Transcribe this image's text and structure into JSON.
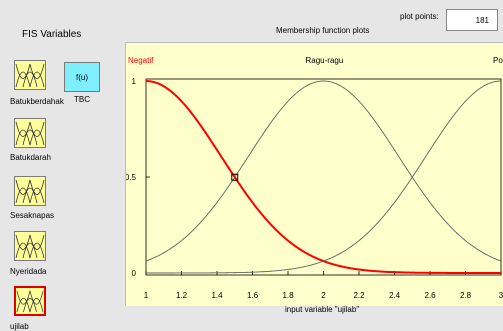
{
  "fis_variables": {
    "title": "FIS Variables",
    "inputs": [
      {
        "label": "Batukberdahak",
        "selected": false
      },
      {
        "label": "Batukdarah",
        "selected": false
      },
      {
        "label": "Sesaknapas",
        "selected": false
      },
      {
        "label": "Nyeridada",
        "selected": false
      },
      {
        "label": "ujilab",
        "selected": true
      }
    ],
    "output": {
      "box_text": "f(u)",
      "label": "TBC"
    }
  },
  "plot": {
    "title": "Membership function plots",
    "plot_points_label": "plot points:",
    "plot_points_value": "181",
    "xlabel": "input variable \"ujilab\"",
    "xlim": [
      1,
      3
    ],
    "ylim": [
      0,
      1
    ],
    "x_ticks": [
      "1",
      "1.2",
      "1.4",
      "1.6",
      "1.8",
      "2",
      "2.2",
      "2.4",
      "2.6",
      "2.8",
      "3"
    ],
    "y_ticks": [
      "0",
      "0.5",
      "1"
    ],
    "membership_functions": [
      {
        "name": "Negatif",
        "type": "gaussmf",
        "center": 1,
        "sigma": 0.424,
        "selected": true,
        "color": "#ff0000"
      },
      {
        "name": "Ragu-ragu",
        "type": "gaussmf",
        "center": 2,
        "sigma": 0.424,
        "selected": false,
        "color": "#606060"
      },
      {
        "name": "Positif",
        "type": "gaussmf",
        "center": 3,
        "sigma": 0.424,
        "selected": false,
        "color": "#606060"
      }
    ],
    "label_colors": {
      "selected": "#ff0000",
      "normal": "#000000"
    }
  }
}
